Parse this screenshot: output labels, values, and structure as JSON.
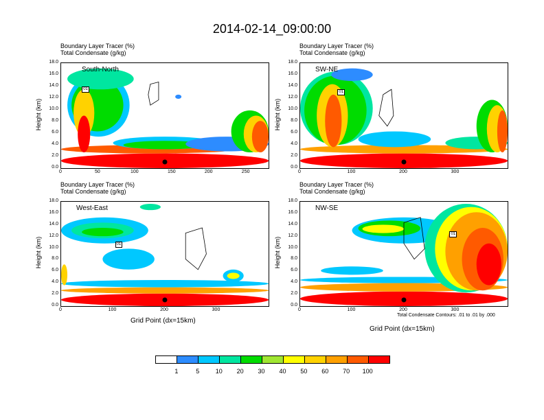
{
  "title": "2014-02-14_09:00:00",
  "header_line1": "Boundary Layer Tracer   (%)",
  "header_line2": "Total Condensate   (g/kg)",
  "ylabel": "Height (km)",
  "xlabel": "Grid Point (dx=15km)",
  "contour_note": "Total Condensate Contours: .01 to .01 by .000",
  "contour_label": "01",
  "colorbar": {
    "labels": [
      "1",
      "5",
      "10",
      "20",
      "30",
      "40",
      "50",
      "60",
      "70",
      "100"
    ],
    "colors": [
      "#ffffff",
      "#2d8cff",
      "#00c8ff",
      "#00e6a0",
      "#00dc00",
      "#a0e632",
      "#ffff00",
      "#ffd200",
      "#ffa000",
      "#ff5a00",
      "#ff0000"
    ]
  },
  "chart_data": [
    {
      "type": "heatmap",
      "name": "South-North",
      "xlim": [
        0,
        280
      ],
      "ylim": [
        0,
        18
      ],
      "xticks": [
        "0",
        "50",
        "100",
        "150",
        "200",
        "250"
      ],
      "yticks": [
        "0.0",
        "2.0",
        "4.0",
        "6.0",
        "8.0",
        "10.0",
        "12.0",
        "14.0",
        "16.0",
        "18.0"
      ],
      "marker_x": 140
    },
    {
      "type": "heatmap",
      "name": "SW-NE",
      "xlim": [
        0,
        400
      ],
      "ylim": [
        0,
        18
      ],
      "xticks": [
        "0",
        "100",
        "200",
        "300"
      ],
      "yticks": [
        "0.0",
        "2.0",
        "4.0",
        "6.0",
        "8.0",
        "10.0",
        "12.0",
        "14.0",
        "16.0",
        "18.0"
      ],
      "marker_x": 200
    },
    {
      "type": "heatmap",
      "name": "West-East",
      "xlim": [
        0,
        400
      ],
      "ylim": [
        0,
        18
      ],
      "xticks": [
        "0",
        "100",
        "200",
        "300"
      ],
      "yticks": [
        "0.0",
        "2.0",
        "4.0",
        "6.0",
        "8.0",
        "10.0",
        "12.0",
        "14.0",
        "16.0",
        "18.0"
      ],
      "marker_x": 200
    },
    {
      "type": "heatmap",
      "name": "NW-SE",
      "xlim": [
        0,
        400
      ],
      "ylim": [
        0,
        18
      ],
      "xticks": [
        "0",
        "100",
        "200",
        "300"
      ],
      "yticks": [
        "0.0",
        "2.0",
        "4.0",
        "6.0",
        "8.0",
        "10.0",
        "12.0",
        "14.0",
        "16.0",
        "18.0"
      ],
      "marker_x": 200
    }
  ]
}
